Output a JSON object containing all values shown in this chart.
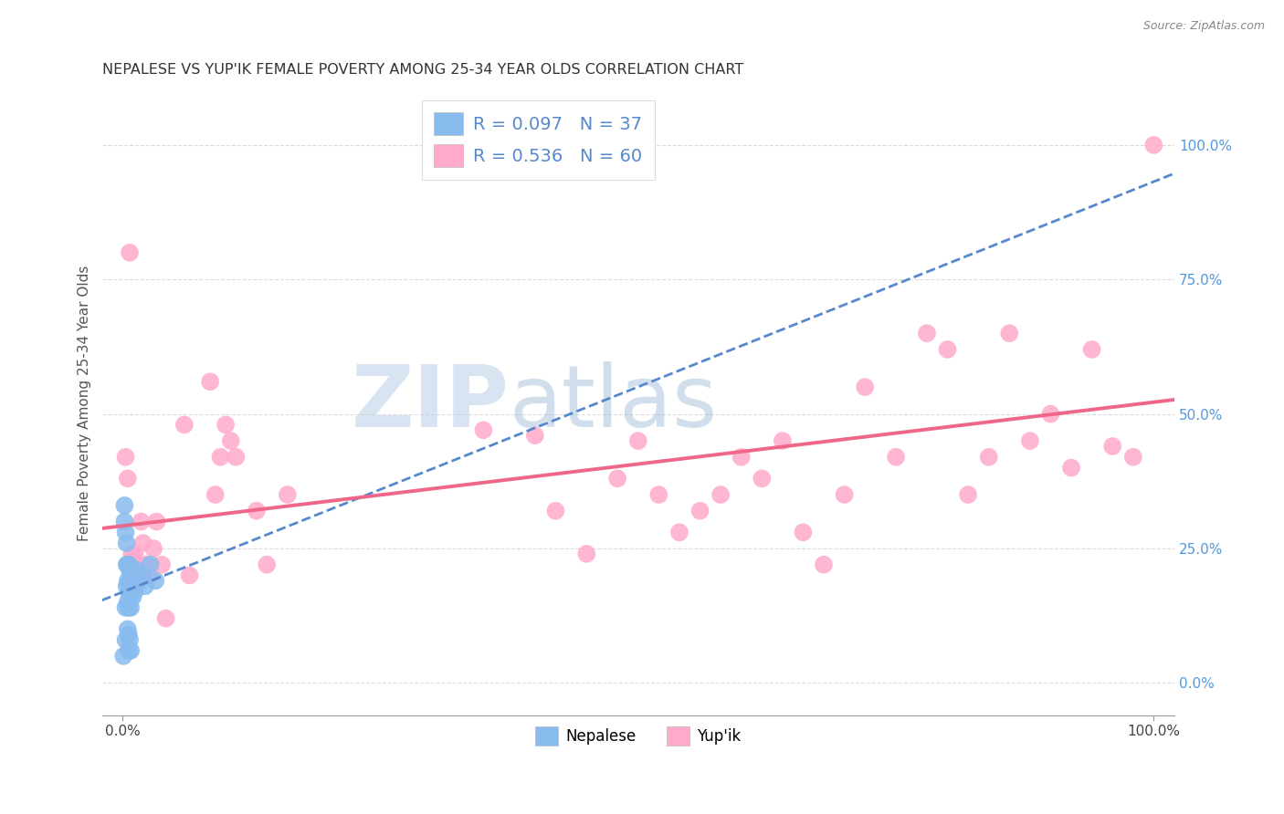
{
  "title": "NEPALESE VS YUP'IK FEMALE POVERTY AMONG 25-34 YEAR OLDS CORRELATION CHART",
  "source": "Source: ZipAtlas.com",
  "ylabel": "Female Poverty Among 25-34 Year Olds",
  "nepalese_R": 0.097,
  "nepalese_N": 37,
  "yupik_R": 0.536,
  "yupik_N": 60,
  "nepalese_color": "#88bbee",
  "yupik_color": "#ffaacc",
  "nepalese_line_color": "#5588cc",
  "yupik_line_color": "#ee6688",
  "grid_color": "#cccccc",
  "title_color": "#333333",
  "right_tick_color": "#5599dd",
  "nepalese_x": [
    0.001,
    0.002,
    0.002,
    0.003,
    0.003,
    0.003,
    0.004,
    0.004,
    0.004,
    0.005,
    0.005,
    0.005,
    0.005,
    0.006,
    0.006,
    0.006,
    0.006,
    0.006,
    0.007,
    0.007,
    0.007,
    0.007,
    0.008,
    0.008,
    0.008,
    0.008,
    0.009,
    0.01,
    0.01,
    0.011,
    0.012,
    0.014,
    0.016,
    0.019,
    0.022,
    0.027,
    0.032
  ],
  "nepalese_y": [
    0.05,
    0.33,
    0.3,
    0.28,
    0.08,
    0.14,
    0.26,
    0.18,
    0.22,
    0.19,
    0.15,
    0.22,
    0.1,
    0.22,
    0.17,
    0.14,
    0.09,
    0.06,
    0.21,
    0.19,
    0.16,
    0.08,
    0.21,
    0.17,
    0.14,
    0.06,
    0.18,
    0.2,
    0.16,
    0.19,
    0.17,
    0.21,
    0.19,
    0.2,
    0.18,
    0.22,
    0.19
  ],
  "yupik_x": [
    0.003,
    0.005,
    0.006,
    0.007,
    0.008,
    0.009,
    0.01,
    0.011,
    0.012,
    0.013,
    0.015,
    0.018,
    0.02,
    0.023,
    0.026,
    0.03,
    0.033,
    0.038,
    0.042,
    0.06,
    0.065,
    0.085,
    0.09,
    0.095,
    0.1,
    0.105,
    0.11,
    0.13,
    0.14,
    0.16,
    0.35,
    0.4,
    0.42,
    0.45,
    0.48,
    0.5,
    0.52,
    0.54,
    0.56,
    0.58,
    0.6,
    0.62,
    0.64,
    0.66,
    0.68,
    0.7,
    0.72,
    0.75,
    0.78,
    0.8,
    0.82,
    0.84,
    0.86,
    0.88,
    0.9,
    0.92,
    0.94,
    0.96,
    0.98,
    1.0
  ],
  "yupik_y": [
    0.42,
    0.38,
    0.22,
    0.8,
    0.18,
    0.24,
    0.22,
    0.2,
    0.24,
    0.2,
    0.22,
    0.3,
    0.26,
    0.22,
    0.2,
    0.25,
    0.3,
    0.22,
    0.12,
    0.48,
    0.2,
    0.56,
    0.35,
    0.42,
    0.48,
    0.45,
    0.42,
    0.32,
    0.22,
    0.35,
    0.47,
    0.46,
    0.32,
    0.24,
    0.38,
    0.45,
    0.35,
    0.28,
    0.32,
    0.35,
    0.42,
    0.38,
    0.45,
    0.28,
    0.22,
    0.35,
    0.55,
    0.42,
    0.65,
    0.62,
    0.35,
    0.42,
    0.65,
    0.45,
    0.5,
    0.4,
    0.62,
    0.44,
    0.42,
    1.0
  ],
  "yticks": [
    0.0,
    0.25,
    0.5,
    0.75,
    1.0
  ],
  "xlim": [
    -0.02,
    1.02
  ],
  "ylim": [
    -0.06,
    1.1
  ]
}
